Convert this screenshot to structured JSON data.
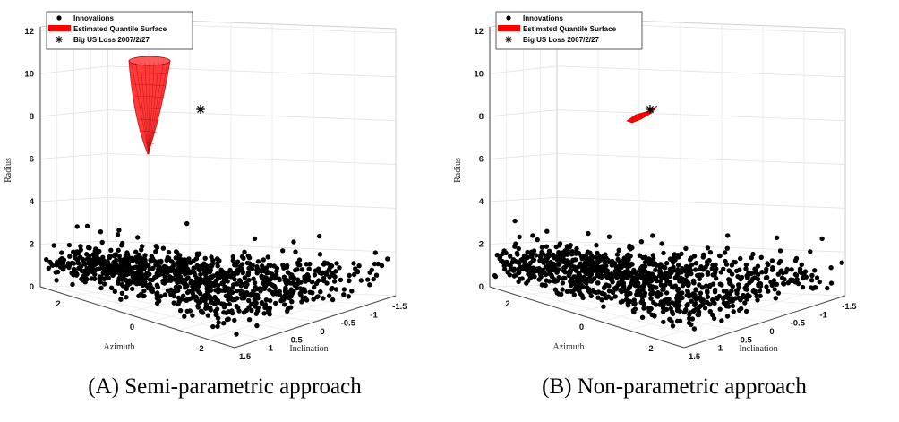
{
  "chart_data": [
    {
      "type": "scatter",
      "variant": "3d-scatter-with-surface",
      "surface": "cone",
      "xlabel": "Azimuth",
      "ylabel": "Inclination",
      "zlabel": "Radius",
      "xticks": [
        "2",
        "0",
        "-2"
      ],
      "yticks": [
        "1.5",
        "1",
        "0.5",
        "0",
        "-0.5",
        "-1",
        "-1.5"
      ],
      "zticks": [
        "0",
        "2",
        "4",
        "6",
        "8",
        "10",
        "12"
      ],
      "zlim": [
        0,
        12
      ],
      "legend": [
        {
          "name": "Innovations",
          "marker": "dot",
          "color": "#000000"
        },
        {
          "name": "Estimated Quantile Surface",
          "marker": "patch",
          "color": "#ff0000"
        },
        {
          "name": "Big US Loss 2007/2/27",
          "marker": "asterisk",
          "color": "#000000"
        }
      ],
      "legend_position": "top-left",
      "grid": true,
      "highlight_point": {
        "azimuth": -0.3,
        "inclination": 0.9,
        "radius": 8.9
      },
      "caption": "(A) Semi-parametric approach"
    },
    {
      "type": "scatter",
      "variant": "3d-scatter-with-surface",
      "surface": "sliver",
      "xlabel": "Azimuth",
      "ylabel": "Inclination",
      "zlabel": "Radius",
      "xticks": [
        "2",
        "0",
        "-2"
      ],
      "yticks": [
        "1.5",
        "1",
        "0.5",
        "0",
        "-0.5",
        "-1",
        "-1.5"
      ],
      "zticks": [
        "0",
        "2",
        "4",
        "6",
        "8",
        "10",
        "12"
      ],
      "zlim": [
        0,
        12
      ],
      "legend": [
        {
          "name": "Innovations",
          "marker": "dot",
          "color": "#000000"
        },
        {
          "name": "Estimated Quantile Surface",
          "marker": "patch",
          "color": "#ff0000"
        },
        {
          "name": "Big US Loss 2007/2/27",
          "marker": "asterisk",
          "color": "#000000"
        }
      ],
      "legend_position": "top-left",
      "grid": true,
      "highlight_point": {
        "azimuth": -0.3,
        "inclination": 0.9,
        "radius": 8.9
      },
      "caption": "(B) Non-parametric approach"
    }
  ]
}
